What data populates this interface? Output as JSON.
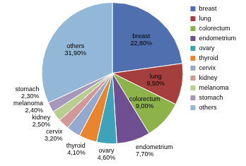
{
  "chart_data": {
    "type": "pie",
    "categories": [
      "breast",
      "lung",
      "colorectum",
      "endometrium",
      "ovary",
      "thyroid",
      "cervix",
      "kidney",
      "melanoma",
      "stomach",
      "others"
    ],
    "values": [
      22.8,
      9.5,
      9.0,
      7.7,
      4.6,
      4.1,
      3.2,
      2.5,
      2.4,
      2.3,
      31.9
    ],
    "value_labels": [
      "22,80%",
      "9,50%",
      "9,00%",
      "7,70%",
      "4,60%",
      "4,10%",
      "3,20%",
      "2,50%",
      "2,40%",
      "2,30%",
      "31,90%"
    ],
    "colors": [
      "#4f6fae",
      "#a53f3e",
      "#8db24a",
      "#6f4f92",
      "#3fa2bb",
      "#e8852e",
      "#93a9d0",
      "#d29897",
      "#b9cd91",
      "#a697bc",
      "#93b7d6"
    ],
    "data_labels": true,
    "legend": "right"
  }
}
